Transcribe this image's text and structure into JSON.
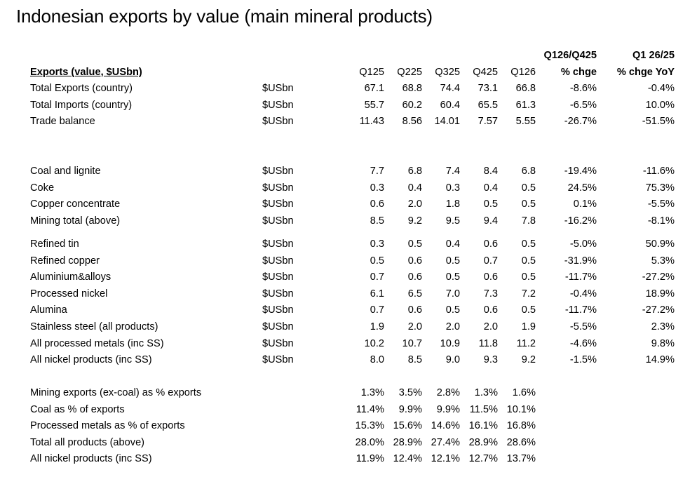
{
  "title": "Indonesian exports by value (main mineral products)",
  "chart_data": {
    "type": "table",
    "header": {
      "row_title": "Exports (value, $USbn)",
      "quarters": [
        "Q125",
        "Q225",
        "Q325",
        "Q425",
        "Q126"
      ],
      "qoq_top": "Q126/Q425",
      "qoq_bottom": "% chge",
      "yoy_top": "Q1 26/25",
      "yoy_bottom": "% chge YoY"
    },
    "groups": [
      {
        "rows": [
          {
            "label": "Total Exports (country)",
            "unit": "$USbn",
            "values": [
              "67.1",
              "68.8",
              "74.4",
              "73.1",
              "66.8"
            ],
            "qoq": "-8.6%",
            "yoy": "-0.4%"
          },
          {
            "label": "Total Imports (country)",
            "unit": "$USbn",
            "values": [
              "55.7",
              "60.2",
              "60.4",
              "65.5",
              "61.3"
            ],
            "qoq": "-6.5%",
            "yoy": "10.0%"
          },
          {
            "label": "Trade balance",
            "unit": "$USbn",
            "values": [
              "11.43",
              "8.56",
              "14.01",
              "7.57",
              "5.55"
            ],
            "qoq": "-26.7%",
            "yoy": "-51.5%"
          }
        ]
      },
      {
        "rows": [
          {
            "label": "Coal and lignite",
            "unit": "$USbn",
            "values": [
              "7.7",
              "6.8",
              "7.4",
              "8.4",
              "6.8"
            ],
            "qoq": "-19.4%",
            "yoy": "-11.6%"
          },
          {
            "label": "Coke",
            "unit": "$USbn",
            "values": [
              "0.3",
              "0.4",
              "0.3",
              "0.4",
              "0.5"
            ],
            "qoq": "24.5%",
            "yoy": "75.3%"
          },
          {
            "label": "Copper concentrate",
            "unit": "$USbn",
            "values": [
              "0.6",
              "2.0",
              "1.8",
              "0.5",
              "0.5"
            ],
            "qoq": "0.1%",
            "yoy": "-5.5%"
          },
          {
            "label": "Mining total (above)",
            "unit": "$USbn",
            "values": [
              "8.5",
              "9.2",
              "9.5",
              "9.4",
              "7.8"
            ],
            "qoq": "-16.2%",
            "yoy": "-8.1%"
          }
        ]
      },
      {
        "rows": [
          {
            "label": "Refined tin",
            "unit": "$USbn",
            "values": [
              "0.3",
              "0.5",
              "0.4",
              "0.6",
              "0.5"
            ],
            "qoq": "-5.0%",
            "yoy": "50.9%"
          },
          {
            "label": "Refined copper",
            "unit": "$USbn",
            "values": [
              "0.5",
              "0.6",
              "0.5",
              "0.7",
              "0.5"
            ],
            "qoq": "-31.9%",
            "yoy": "5.3%"
          },
          {
            "label": "Aluminium&alloys",
            "unit": "$USbn",
            "values": [
              "0.7",
              "0.6",
              "0.5",
              "0.6",
              "0.5"
            ],
            "qoq": "-11.7%",
            "yoy": "-27.2%"
          },
          {
            "label": "Processed nickel",
            "unit": "$USbn",
            "values": [
              "6.1",
              "6.5",
              "7.0",
              "7.3",
              "7.2"
            ],
            "qoq": "-0.4%",
            "yoy": "18.9%"
          },
          {
            "label": "Alumina",
            "unit": "$USbn",
            "values": [
              "0.7",
              "0.6",
              "0.5",
              "0.6",
              "0.5"
            ],
            "qoq": "-11.7%",
            "yoy": "-27.2%"
          },
          {
            "label": "Stainless steel (all products)",
            "unit": "$USbn",
            "values": [
              "1.9",
              "2.0",
              "2.0",
              "2.0",
              "1.9"
            ],
            "qoq": "-5.5%",
            "yoy": "2.3%"
          },
          {
            "label": "All processed metals (inc SS)",
            "unit": "$USbn",
            "values": [
              "10.2",
              "10.7",
              "10.9",
              "11.8",
              "11.2"
            ],
            "qoq": "-4.6%",
            "yoy": "9.8%"
          },
          {
            "label": "All nickel products (inc SS)",
            "unit": "$USbn",
            "values": [
              "8.0",
              "8.5",
              "9.0",
              "9.3",
              "9.2"
            ],
            "qoq": "-1.5%",
            "yoy": "14.9%"
          }
        ]
      },
      {
        "rows": [
          {
            "label": "Mining exports (ex-coal) as % exports",
            "unit": "",
            "values": [
              "1.3%",
              "3.5%",
              "2.8%",
              "1.3%",
              "1.6%"
            ],
            "qoq": "",
            "yoy": ""
          },
          {
            "label": "Coal as % of exports",
            "unit": "",
            "values": [
              "11.4%",
              "9.9%",
              "9.9%",
              "11.5%",
              "10.1%"
            ],
            "qoq": "",
            "yoy": ""
          },
          {
            "label": "Processed metals as % of exports",
            "unit": "",
            "values": [
              "15.3%",
              "15.6%",
              "14.6%",
              "16.1%",
              "16.8%"
            ],
            "qoq": "",
            "yoy": ""
          },
          {
            "label": "Total all products (above)",
            "unit": "",
            "values": [
              "28.0%",
              "28.9%",
              "27.4%",
              "28.9%",
              "28.6%"
            ],
            "qoq": "",
            "yoy": ""
          },
          {
            "label": "All nickel products (inc SS)",
            "unit": "",
            "values": [
              "11.9%",
              "12.4%",
              "12.1%",
              "12.7%",
              "13.7%"
            ],
            "qoq": "",
            "yoy": ""
          }
        ]
      }
    ]
  }
}
